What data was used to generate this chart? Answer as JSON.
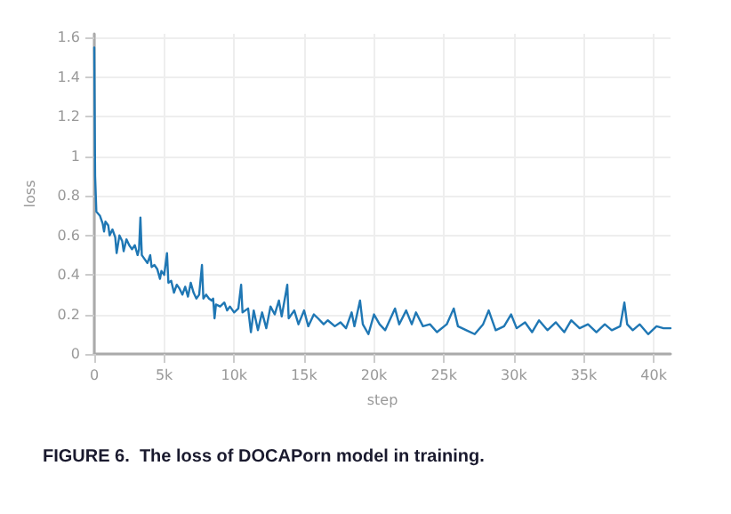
{
  "chart_data": {
    "type": "line",
    "xlabel": "step",
    "ylabel": "loss",
    "annotations": [
      "FIGURE 6.  The loss of DOCAPorn model in training."
    ],
    "xlim": [
      0,
      41200
    ],
    "xticks": [
      0,
      {
        "value": 5000,
        "label": "5k"
      },
      {
        "value": 10000,
        "label": "10k"
      },
      {
        "value": 15000,
        "label": "15k"
      },
      {
        "value": 20000,
        "label": "20k"
      },
      {
        "value": 25000,
        "label": "25k"
      },
      {
        "value": 30000,
        "label": "30k"
      },
      {
        "value": 35000,
        "label": "35k"
      },
      {
        "value": 40000,
        "label": "40k"
      }
    ],
    "ylim": [
      0,
      1.62
    ],
    "yticks": [
      0,
      0.2,
      0.4,
      0.6,
      0.8,
      1,
      1.2,
      1.4,
      1.6
    ],
    "grid": true,
    "marker": "none",
    "line_style": "solid",
    "series": [
      {
        "color": "#1f77b4",
        "x": [
          0,
          60,
          150,
          400,
          600,
          700,
          800,
          1000,
          1100,
          1300,
          1500,
          1600,
          1800,
          2000,
          2100,
          2300,
          2500,
          2700,
          2900,
          3100,
          3200,
          3300,
          3400,
          3600,
          3800,
          4000,
          4100,
          4300,
          4500,
          4700,
          4800,
          5000,
          5200,
          5300,
          5500,
          5700,
          5900,
          6100,
          6300,
          6500,
          6700,
          6900,
          7100,
          7300,
          7500,
          7700,
          7800,
          8000,
          8200,
          8400,
          8500,
          8600,
          8700,
          9000,
          9300,
          9500,
          9700,
          10000,
          10300,
          10500,
          10600,
          11000,
          11200,
          11400,
          11700,
          12000,
          12300,
          12600,
          12900,
          13200,
          13400,
          13800,
          13900,
          14300,
          14600,
          15000,
          15300,
          15700,
          16000,
          16400,
          16700,
          17200,
          17600,
          18000,
          18400,
          18600,
          19000,
          19200,
          19600,
          20000,
          20400,
          20800,
          21500,
          21800,
          22300,
          22700,
          23000,
          23500,
          24000,
          24500,
          25200,
          25700,
          26000,
          26600,
          27200,
          27800,
          28200,
          28700,
          29300,
          29800,
          30200,
          30800,
          31300,
          31800,
          32400,
          33000,
          33600,
          34100,
          34700,
          35300,
          35900,
          36500,
          37000,
          37600,
          37900,
          38100,
          38500,
          39000,
          39600,
          40200,
          40700,
          41200
        ],
        "values": [
          1.55,
          0.9,
          0.72,
          0.7,
          0.66,
          0.62,
          0.67,
          0.65,
          0.6,
          0.63,
          0.59,
          0.51,
          0.6,
          0.57,
          0.52,
          0.58,
          0.55,
          0.53,
          0.55,
          0.5,
          0.53,
          0.69,
          0.5,
          0.48,
          0.46,
          0.5,
          0.44,
          0.45,
          0.43,
          0.38,
          0.42,
          0.4,
          0.51,
          0.36,
          0.37,
          0.31,
          0.35,
          0.33,
          0.3,
          0.34,
          0.29,
          0.36,
          0.31,
          0.28,
          0.3,
          0.45,
          0.28,
          0.3,
          0.28,
          0.27,
          0.28,
          0.18,
          0.25,
          0.24,
          0.26,
          0.22,
          0.24,
          0.21,
          0.23,
          0.35,
          0.21,
          0.23,
          0.11,
          0.22,
          0.12,
          0.21,
          0.13,
          0.24,
          0.2,
          0.27,
          0.19,
          0.35,
          0.18,
          0.22,
          0.15,
          0.22,
          0.14,
          0.2,
          0.18,
          0.15,
          0.17,
          0.14,
          0.16,
          0.13,
          0.21,
          0.14,
          0.27,
          0.15,
          0.1,
          0.2,
          0.15,
          0.12,
          0.23,
          0.15,
          0.22,
          0.15,
          0.21,
          0.14,
          0.15,
          0.11,
          0.15,
          0.23,
          0.14,
          0.12,
          0.1,
          0.15,
          0.22,
          0.12,
          0.14,
          0.2,
          0.13,
          0.16,
          0.11,
          0.17,
          0.12,
          0.16,
          0.11,
          0.17,
          0.13,
          0.15,
          0.11,
          0.15,
          0.12,
          0.14,
          0.26,
          0.15,
          0.12,
          0.15,
          0.1,
          0.14,
          0.13,
          0.13
        ]
      }
    ]
  }
}
